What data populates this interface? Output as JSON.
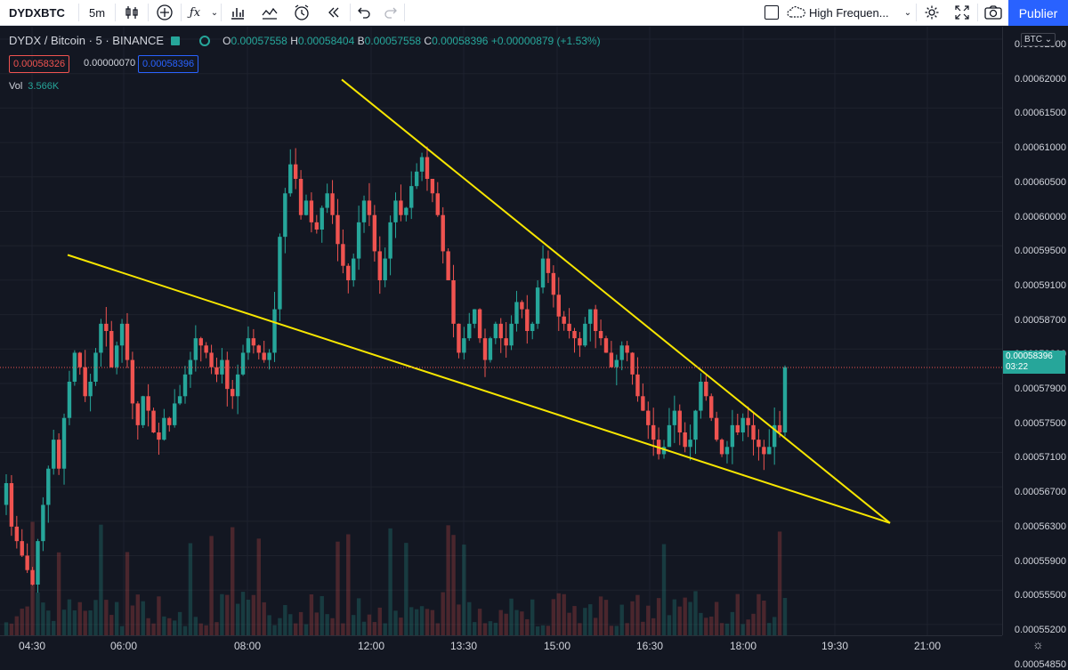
{
  "toolbar": {
    "symbol": "DYDXBTC",
    "interval": "5m",
    "indicator_label": "High Frequen...",
    "publish_label": "Publier"
  },
  "legend": {
    "title": "DYDX / Bitcoin · 5 · BINANCE",
    "open_k": "O",
    "open_v": "0.00057558",
    "high_k": "H",
    "high_v": "0.00058404",
    "low_k": "B",
    "low_v": "0.00057558",
    "close_k": "C",
    "close_v": "0.00058396",
    "change": "+0.00000879 (+1.53%)",
    "sell": "0.00058326",
    "spread": "0.00000070",
    "buy": "0.00058396",
    "vol_label": "Vol",
    "vol_value": "3.566K"
  },
  "price_axis": {
    "currency": "BTC",
    "labels": [
      "0.00062500",
      "0.00062000",
      "0.00061500",
      "0.00061000",
      "0.00060500",
      "0.00060000",
      "0.00059500",
      "0.00059100",
      "0.00058700",
      "0.00058300",
      "0.00057900",
      "0.00057500",
      "0.00057100",
      "0.00056700",
      "0.00056300",
      "0.00055900",
      "0.00055500",
      "0.00055200",
      "0.00054850"
    ],
    "current_price": "0.00058396",
    "countdown": "03:22"
  },
  "time_axis": {
    "labels": [
      "04:30",
      "06:00",
      "08:00",
      "12:00",
      "13:30",
      "15:00",
      "16:30",
      "18:00",
      "19:30",
      "21:00"
    ]
  },
  "colors": {
    "up": "#26a69a",
    "down": "#ef5350",
    "trendline": "#f7e600",
    "background": "#131722"
  },
  "chart_data": {
    "type": "candlestick",
    "symbol": "DYDX / Bitcoin",
    "interval": "5",
    "exchange": "BINANCE",
    "y_range": [
      0.000547,
      0.000631
    ],
    "closes": [
      0.000568,
      0.000562,
      0.00056,
      0.000558,
      0.000556,
      0.000554,
      0.00056,
      0.000565,
      0.00057,
      0.000574,
      0.00057,
      0.000577,
      0.000582,
      0.000586,
      0.000584,
      0.00058,
      0.000582,
      0.000586,
      0.00059,
      0.000589,
      0.000584,
      0.000587,
      0.00059,
      0.000585,
      0.000579,
      0.000576,
      0.00058,
      0.000578,
      0.000575,
      0.000574,
      0.000577,
      0.000576,
      0.000579,
      0.00058,
      0.000583,
      0.000585,
      0.000588,
      0.000587,
      0.000586,
      0.000584,
      0.000583,
      0.000585,
      0.000581,
      0.00058,
      0.000583,
      0.000586,
      0.000588,
      0.000587,
      0.000586,
      0.000585,
      0.000586,
      0.000592,
      0.000602,
      0.000608,
      0.000612,
      0.00061,
      0.000605,
      0.000607,
      0.000604,
      0.000603,
      0.000606,
      0.000608,
      0.000605,
      0.000601,
      0.000598,
      0.000596,
      0.000599,
      0.000604,
      0.000607,
      0.000605,
      0.0006,
      0.000596,
      0.000599,
      0.000604,
      0.000607,
      0.000605,
      0.000606,
      0.000609,
      0.000611,
      0.000613,
      0.00061,
      0.000608,
      0.000605,
      0.0006,
      0.000596,
      0.00059,
      0.000586,
      0.000588,
      0.00059,
      0.000592,
      0.000588,
      0.000585,
      0.000588,
      0.00059,
      0.000588,
      0.000587,
      0.00059,
      0.000593,
      0.000592,
      0.000589,
      0.00059,
      0.000595,
      0.000599,
      0.000597,
      0.000594,
      0.000591,
      0.00059,
      0.000589,
      0.000588,
      0.000587,
      0.00059,
      0.000592,
      0.000589,
      0.000588,
      0.000586,
      0.000584,
      0.000585,
      0.000587,
      0.000586,
      0.000583,
      0.00058,
      0.000578,
      0.000576,
      0.000574,
      0.000572,
      0.000573,
      0.000576,
      0.000578,
      0.000575,
      0.000573,
      0.000574,
      0.000578,
      0.000582,
      0.00058,
      0.000577,
      0.000574,
      0.000572,
      0.000573,
      0.000576,
      0.000575,
      0.000577,
      0.000576,
      0.000574,
      0.000573,
      0.000572,
      0.000573,
      0.000576,
      0.000575,
      0.000584
    ]
  }
}
